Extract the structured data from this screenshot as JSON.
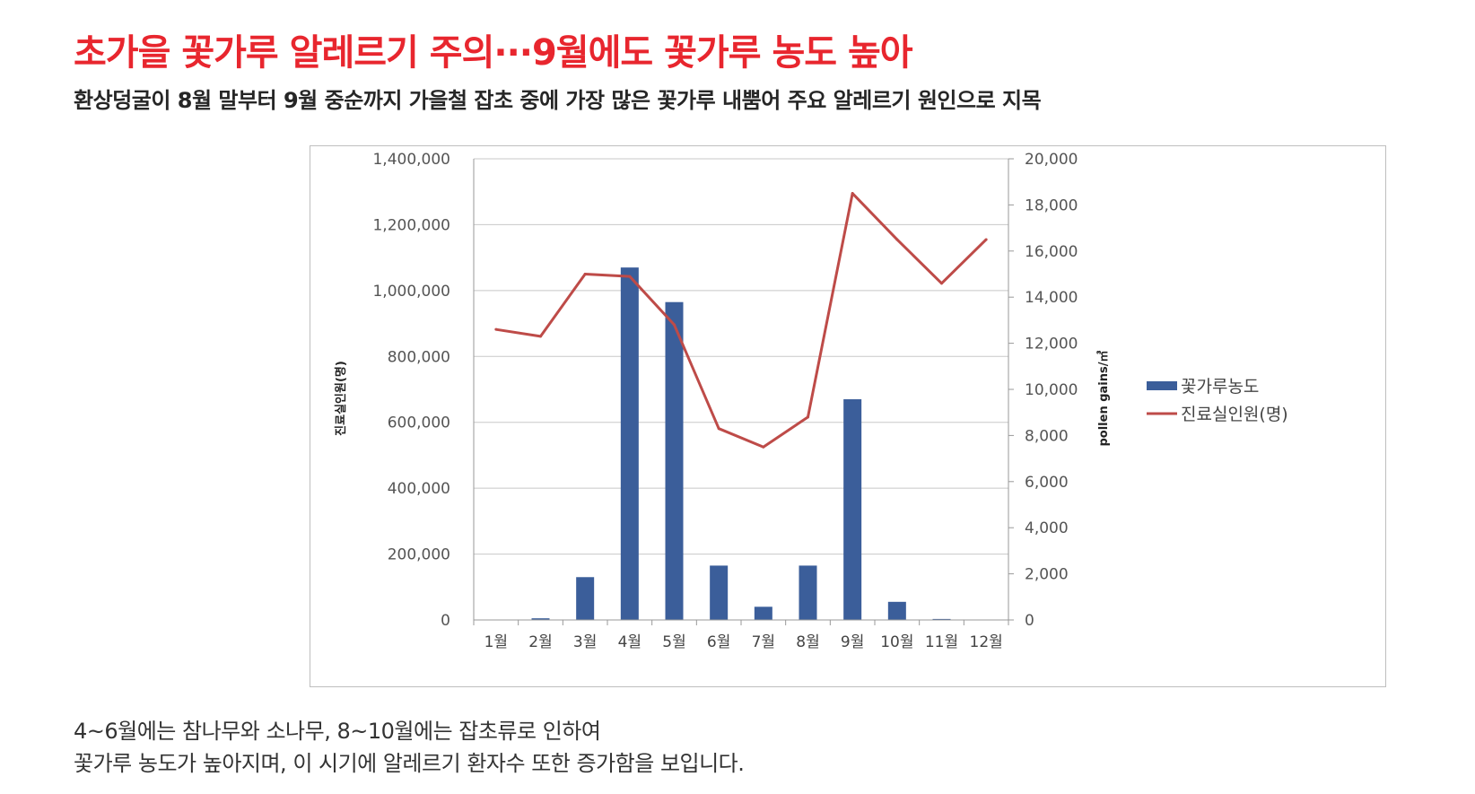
{
  "headline": "초가을 꽃가루 알레르기 주의···9월에도 꽃가루 농도 높아",
  "subhead": "환상덩굴이 8월 말부터 9월 중순까지 가을철 잡초 중에 가장 많은 꽃가루 내뿜어 주요 알레르기 원인으로 지목",
  "caption": {
    "line1": "4~6월에는 참나무와 소나무, 8~10월에는 잡초류로 인하여",
    "line2": "꽃가루 농도가 높아지며, 이 시기에 알레르기 환자수 또한 증가함을 보입니다."
  },
  "colors": {
    "bar": "#3b5e9a",
    "line": "#be4b48",
    "headline": "#e8262e"
  },
  "chart_data": {
    "type": "bar",
    "categories": [
      "1월",
      "2월",
      "3월",
      "4월",
      "5월",
      "6월",
      "7월",
      "8월",
      "9월",
      "10월",
      "11월",
      "12월"
    ],
    "ylabel_left": "진료실인원(명)",
    "ylabel_right": "pollen gains/㎥",
    "ylim_left": [
      0,
      1400000
    ],
    "ylim_right": [
      0,
      20000
    ],
    "yticks_left": [
      "0",
      "200,000",
      "400,000",
      "600,000",
      "800,000",
      "1,000,000",
      "1,200,000",
      "1,400,000"
    ],
    "yticks_right": [
      "0",
      "2,000",
      "4,000",
      "6,000",
      "8,000",
      "10,000",
      "12,000",
      "14,000",
      "16,000",
      "18,000",
      "20,000"
    ],
    "grid": true,
    "legend_position": "right",
    "series": [
      {
        "name": "꽃가루농도",
        "type": "bar",
        "axis": "left",
        "values": [
          0,
          5000,
          130000,
          1070000,
          965000,
          165000,
          40000,
          165000,
          670000,
          55000,
          3000,
          0
        ]
      },
      {
        "name": "진료실인원(명)",
        "type": "line",
        "axis": "right",
        "values": [
          12600,
          12300,
          15000,
          14900,
          12800,
          8300,
          7500,
          8800,
          18500,
          16500,
          14600,
          16500
        ]
      }
    ]
  }
}
